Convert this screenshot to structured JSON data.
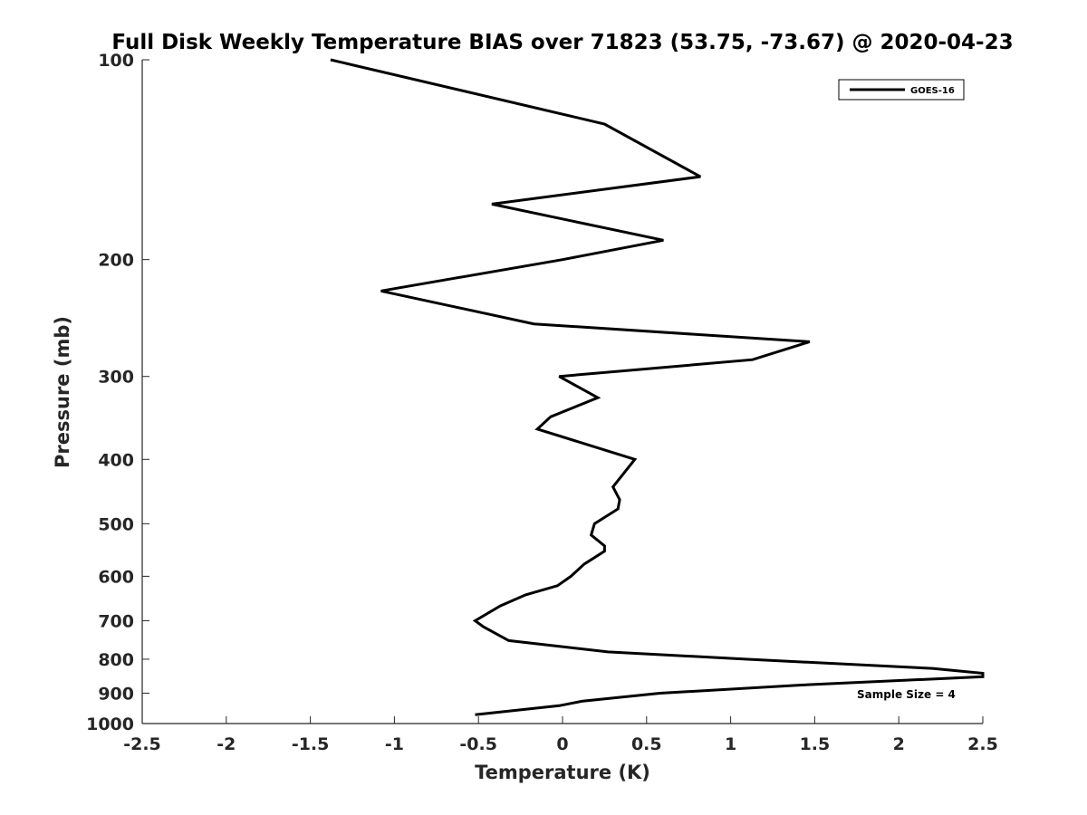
{
  "chart_data": {
    "type": "line",
    "title": "Full Disk Weekly Temperature BIAS over 71823 (53.75, -73.67) @ 2020-04-23",
    "xlabel": "Temperature (K)",
    "ylabel": "Pressure (mb)",
    "xlim": [
      -2.5,
      2.5
    ],
    "ylim": [
      100,
      1000
    ],
    "y_scale": "log",
    "y_reversed": true,
    "grid": false,
    "legend_position": "top-right",
    "x_ticks": [
      -2.5,
      -2,
      -1.5,
      -1,
      -0.5,
      0,
      0.5,
      1,
      1.5,
      2,
      2.5
    ],
    "x_tick_labels": [
      "-2.5",
      "-2",
      "-1.5",
      "-1",
      "-0.5",
      "0",
      "0.5",
      "1",
      "1.5",
      "2",
      "2.5"
    ],
    "y_ticks": [
      100,
      200,
      300,
      400,
      500,
      600,
      700,
      800,
      900,
      1000
    ],
    "y_tick_labels": [
      "100",
      "200",
      "300",
      "400",
      "500",
      "600",
      "700",
      "800",
      "900",
      "1000"
    ],
    "series": [
      {
        "name": "GOES-16",
        "color": "#000000",
        "x": [
          -1.38,
          0.25,
          0.82,
          -0.42,
          0.6,
          0.0,
          -1.08,
          -0.17,
          1.47,
          1.13,
          -0.02,
          0.21,
          -0.07,
          -0.15,
          0.43,
          0.3,
          0.34,
          0.33,
          0.19,
          0.17,
          0.25,
          0.25,
          0.13,
          0.05,
          -0.03,
          -0.22,
          -0.37,
          -0.52,
          -0.47,
          -0.32,
          0.27,
          1.1,
          2.2,
          2.5,
          2.5,
          1.42,
          0.58,
          0.12,
          -0.02,
          -0.52
        ],
        "y": [
          100,
          125,
          150,
          165,
          187,
          200,
          223,
          250,
          266,
          283,
          300,
          323,
          345,
          360,
          400,
          440,
          460,
          475,
          500,
          520,
          540,
          550,
          575,
          600,
          620,
          640,
          665,
          700,
          715,
          750,
          780,
          800,
          826,
          840,
          850,
          875,
          900,
          925,
          940,
          970
        ]
      }
    ],
    "annotations": [
      "Sample Size = 4"
    ]
  }
}
